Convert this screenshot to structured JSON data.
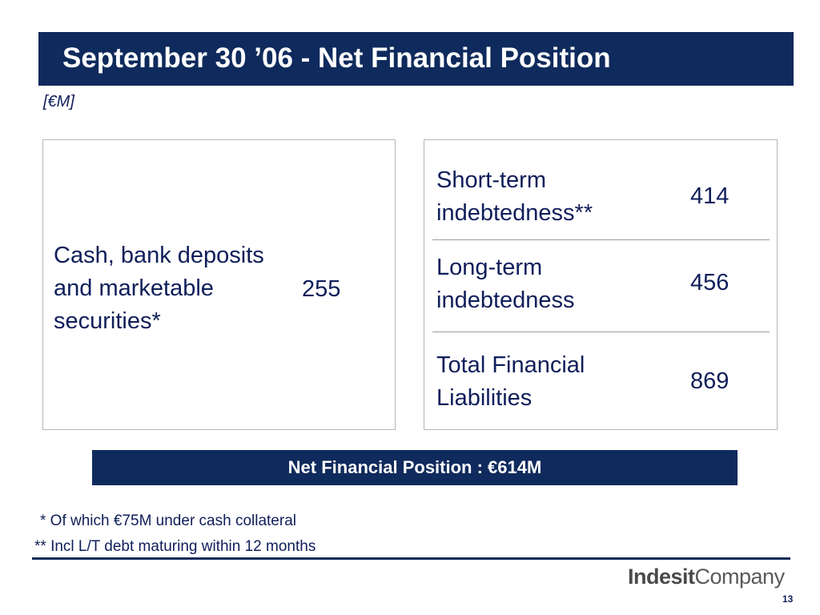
{
  "title": "September 30 ’06 - Net Financial Position",
  "unit": "[€M]",
  "assets": {
    "label_lines": [
      "Cash, bank deposits",
      "and marketable",
      "securities*"
    ],
    "value": "255"
  },
  "liabilities": [
    {
      "label_lines": [
        "Short-term",
        "indebtedness**"
      ],
      "value": "414"
    },
    {
      "label_lines": [
        "Long-term",
        "indebtedness"
      ],
      "value": "456"
    },
    {
      "label_lines": [
        "Total Financial",
        "Liabilities"
      ],
      "value": "869"
    }
  ],
  "net_position": "Net Financial Position : €614M",
  "footnotes": [
    "* Of which €75M under cash collateral",
    "** Incl L/T debt maturing within 12 months"
  ],
  "logo": {
    "bold": "Indesit",
    "regular": "Company"
  },
  "page_number": "13"
}
